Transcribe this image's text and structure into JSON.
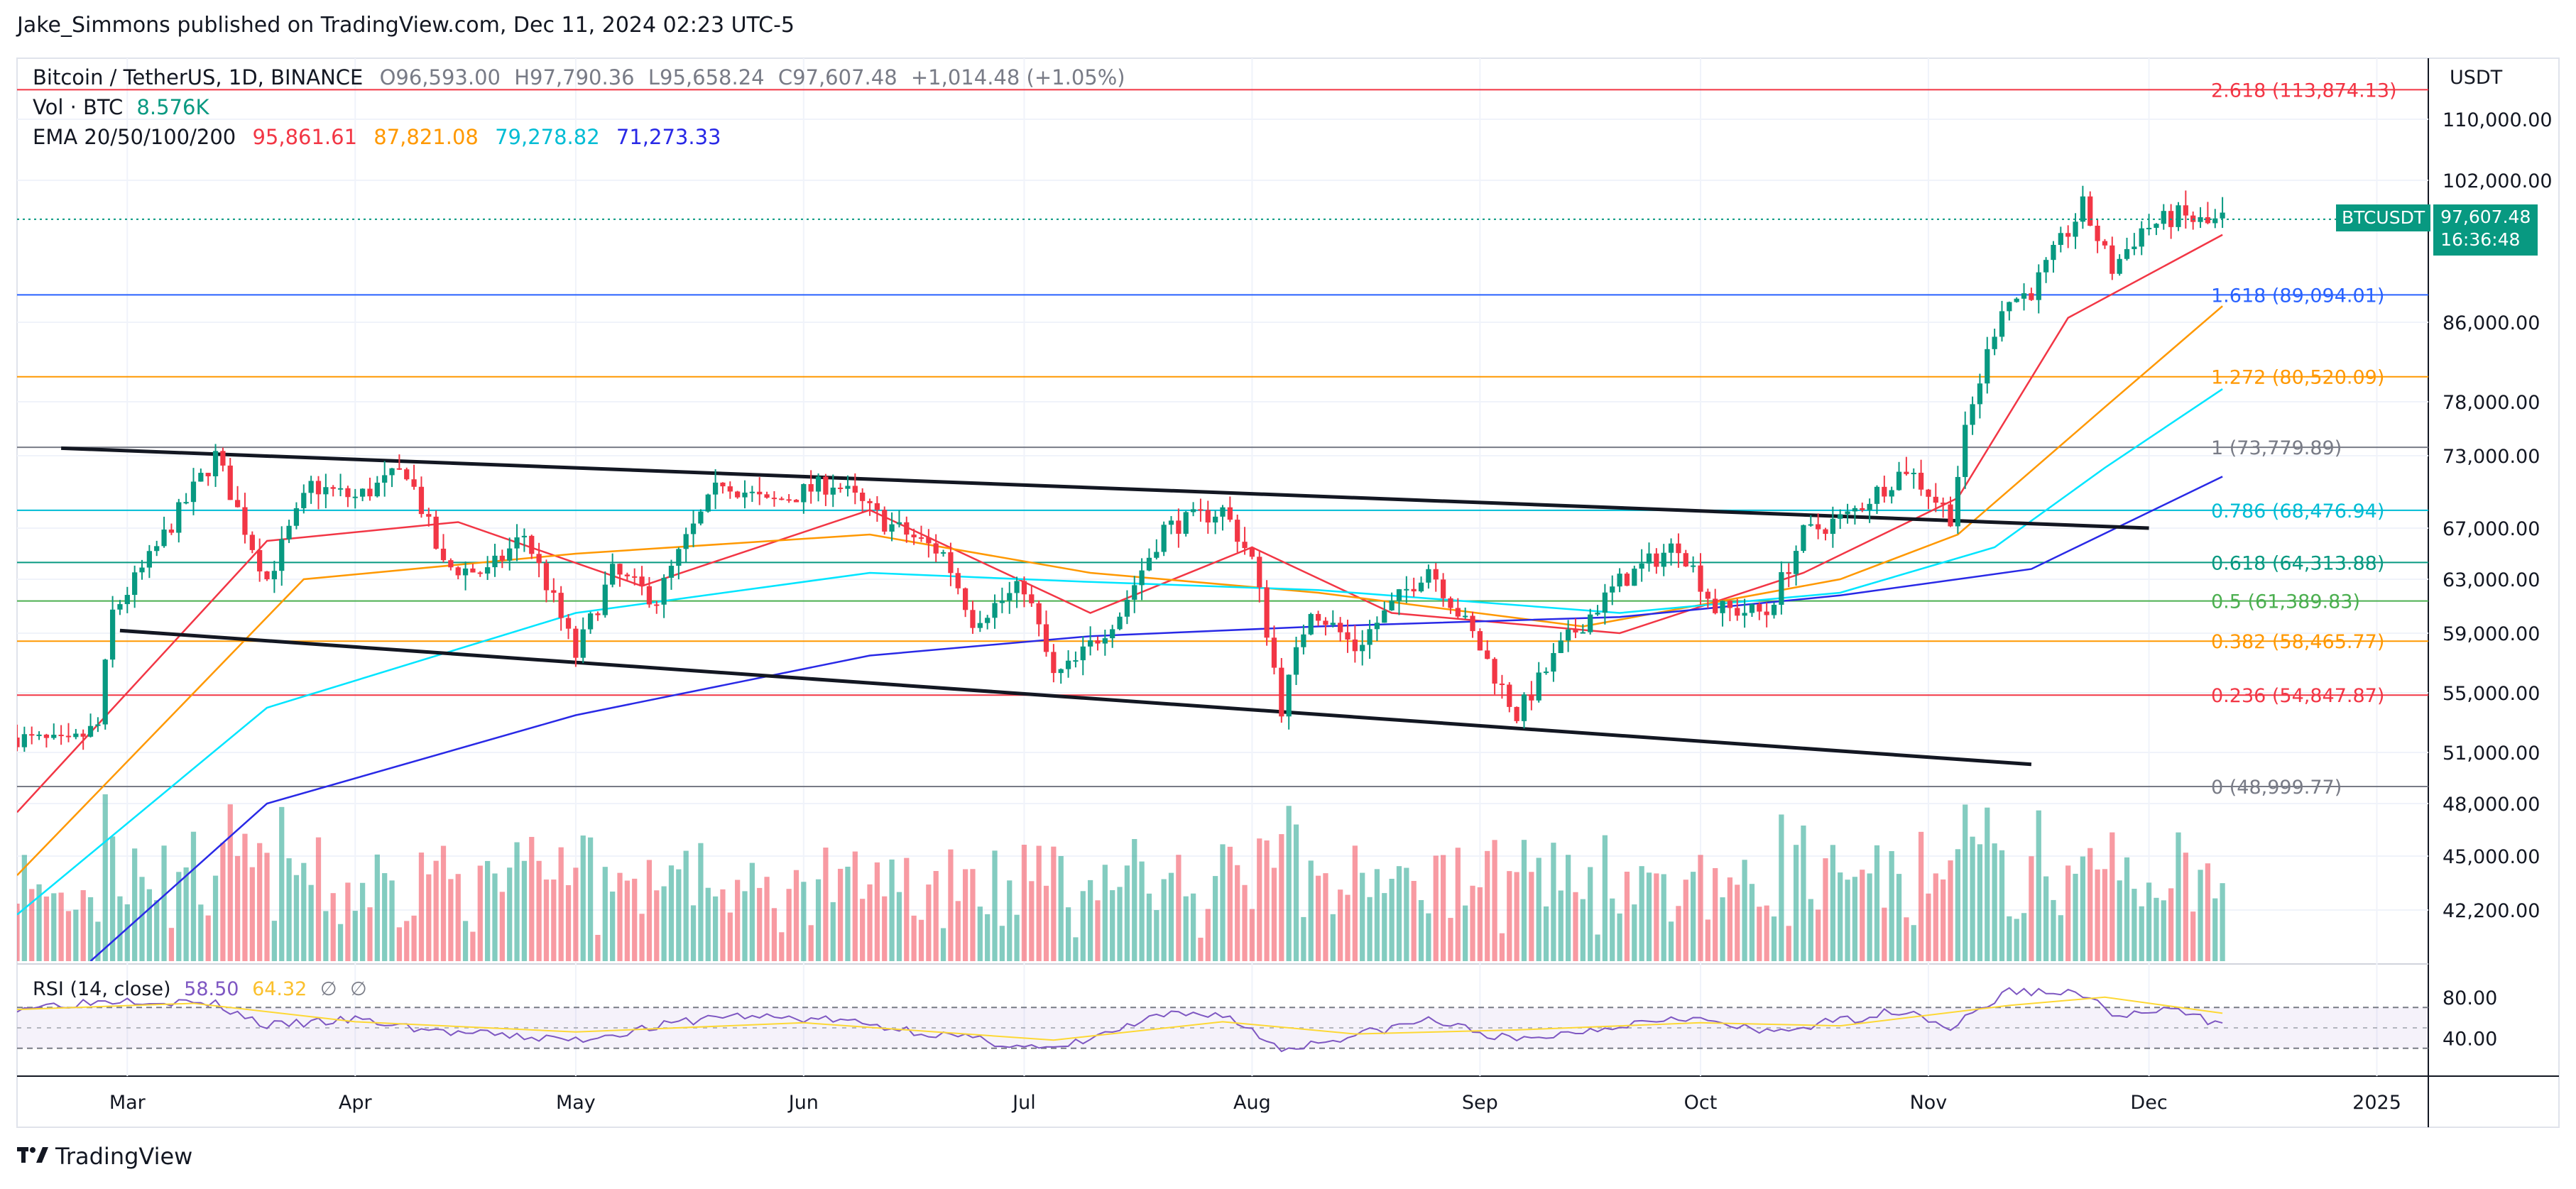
{
  "header": {
    "published": "Jake_Simmons published on TradingView.com, Dec 11, 2024 02:23 UTC-5"
  },
  "legend": {
    "symbol": "Bitcoin / TetherUS, 1D, BINANCE",
    "o_label": "O",
    "o": "96,593.00",
    "h_label": "H",
    "h": "97,790.36",
    "l_label": "L",
    "l": "95,658.24",
    "c_label": "C",
    "c": "97,607.48",
    "change": "+1,014.48 (+1.05%)",
    "vol_label": "Vol · BTC",
    "vol": "8.576K",
    "ema_label": "EMA 20/50/100/200",
    "ema20": "95,861.61",
    "ema50": "87,821.08",
    "ema100": "79,278.82",
    "ema200": "71,273.33"
  },
  "rsi_legend": {
    "label": "RSI (14, close)",
    "rsi": "58.50",
    "ma": "64.32",
    "d1": "∅",
    "d2": "∅"
  },
  "price_axis": {
    "unit": "USDT"
  },
  "current_price": {
    "ticker": "BTCUSDT",
    "price": "97,607.48",
    "countdown": "16:36:48"
  },
  "footer": {
    "brand": "TradingView"
  },
  "colors": {
    "up": "#089981",
    "down": "#f23645",
    "ema20": "#f23645",
    "ema50": "#ff9800",
    "ema100": "#00e5ff",
    "ema200": "#2929e6",
    "rsi": "#7e57c2",
    "rsi_ma": "#fdd835"
  },
  "chart_data": {
    "type": "candlestick",
    "title": "Bitcoin / TetherUS, 1D, BINANCE",
    "x_range": [
      "2024-02-15",
      "2025-01-08"
    ],
    "y_range": [
      40000,
      118000
    ],
    "x_ticks": [
      {
        "label": "Mar",
        "date": "2024-03-01"
      },
      {
        "label": "Apr",
        "date": "2024-04-01"
      },
      {
        "label": "May",
        "date": "2024-05-01"
      },
      {
        "label": "Jun",
        "date": "2024-06-01"
      },
      {
        "label": "Jul",
        "date": "2024-07-01"
      },
      {
        "label": "Aug",
        "date": "2024-08-01"
      },
      {
        "label": "Sep",
        "date": "2024-09-01"
      },
      {
        "label": "Oct",
        "date": "2024-10-01"
      },
      {
        "label": "Nov",
        "date": "2024-11-01"
      },
      {
        "label": "Dec",
        "date": "2024-12-01"
      },
      {
        "label": "2025",
        "date": "2025-01-01"
      }
    ],
    "y_ticks": [
      {
        "label": "110,000.00",
        "value": 110000
      },
      {
        "label": "102,000.00",
        "value": 102000
      },
      {
        "label": "86,000.00",
        "value": 86000
      },
      {
        "label": "78,000.00",
        "value": 78000
      },
      {
        "label": "73,000.00",
        "value": 73000
      },
      {
        "label": "67,000.00",
        "value": 67000
      },
      {
        "label": "63,000.00",
        "value": 63000
      },
      {
        "label": "59,000.00",
        "value": 59000
      },
      {
        "label": "55,000.00",
        "value": 55000
      },
      {
        "label": "51,000.00",
        "value": 51000
      },
      {
        "label": "48,000.00",
        "value": 48000
      },
      {
        "label": "45,000.00",
        "value": 45000
      },
      {
        "label": "42,200.00",
        "value": 42200
      }
    ],
    "rsi_ticks": [
      {
        "label": "80.00",
        "value": 80
      },
      {
        "label": "40.00",
        "value": 40
      }
    ],
    "fib_levels": [
      {
        "label": "2.618 (113,874.13)",
        "value": 113874.13,
        "color": "#f23645"
      },
      {
        "label": "1.618 (89,094.01)",
        "value": 89094.01,
        "color": "#2962ff"
      },
      {
        "label": "1.272 (80,520.09)",
        "value": 80520.09,
        "color": "#ff9800"
      },
      {
        "label": "1 (73,779.89)",
        "value": 73779.89,
        "color": "#787b86"
      },
      {
        "label": "0.786 (68,476.94)",
        "value": 68476.94,
        "color": "#00bcd4"
      },
      {
        "label": "0.618 (64,313.88)",
        "value": 64313.88,
        "color": "#089981"
      },
      {
        "label": "0.5 (61,389.83)",
        "value": 61389.83,
        "color": "#4caf50"
      },
      {
        "label": "0.382 (58,465.77)",
        "value": 58465.77,
        "color": "#ff9800"
      },
      {
        "label": "0.236 (54,847.87)",
        "value": 54847.87,
        "color": "#f23645"
      },
      {
        "label": "0 (48,999.77)",
        "value": 48999.77,
        "color": "#787b86"
      }
    ],
    "trendlines": [
      {
        "from": {
          "date": "2024-02-21",
          "value": 73700
        },
        "to": {
          "date": "2024-12-01",
          "value": 67000
        }
      },
      {
        "from": {
          "date": "2024-02-29",
          "value": 59200
        },
        "to": {
          "date": "2024-11-15",
          "value": 50300
        }
      }
    ],
    "price_path": [
      [
        "2024-02-15",
        52000
      ],
      [
        "2024-02-22",
        51500
      ],
      [
        "2024-02-26",
        52800
      ],
      [
        "2024-02-28",
        60500
      ],
      [
        "2024-03-04",
        64500
      ],
      [
        "2024-03-08",
        68300
      ],
      [
        "2024-03-13",
        73000
      ],
      [
        "2024-03-17",
        67000
      ],
      [
        "2024-03-20",
        63000
      ],
      [
        "2024-03-26",
        70500
      ],
      [
        "2024-04-01",
        69500
      ],
      [
        "2024-04-08",
        71800
      ],
      [
        "2024-04-13",
        64000
      ],
      [
        "2024-04-19",
        63500
      ],
      [
        "2024-04-24",
        66500
      ],
      [
        "2024-05-01",
        57500
      ],
      [
        "2024-05-06",
        63500
      ],
      [
        "2024-05-12",
        61500
      ],
      [
        "2024-05-16",
        66000
      ],
      [
        "2024-05-21",
        71000
      ],
      [
        "2024-05-27",
        69000
      ],
      [
        "2024-06-05",
        70800
      ],
      [
        "2024-06-12",
        67500
      ],
      [
        "2024-06-20",
        65000
      ],
      [
        "2024-06-24",
        60000
      ],
      [
        "2024-07-01",
        62500
      ],
      [
        "2024-07-05",
        56000
      ],
      [
        "2024-07-08",
        57000
      ],
      [
        "2024-07-14",
        60500
      ],
      [
        "2024-07-20",
        67000
      ],
      [
        "2024-07-28",
        68500
      ],
      [
        "2024-08-01",
        64500
      ],
      [
        "2024-08-05",
        54000
      ],
      [
        "2024-08-09",
        61000
      ],
      [
        "2024-08-15",
        58000
      ],
      [
        "2024-08-25",
        64000
      ],
      [
        "2024-09-01",
        58000
      ],
      [
        "2024-09-06",
        53500
      ],
      [
        "2024-09-12",
        58000
      ],
      [
        "2024-09-20",
        62800
      ],
      [
        "2024-09-28",
        65800
      ],
      [
        "2024-10-03",
        60800
      ],
      [
        "2024-10-10",
        60500
      ],
      [
        "2024-10-15",
        66500
      ],
      [
        "2024-10-21",
        68000
      ],
      [
        "2024-10-29",
        72000
      ],
      [
        "2024-11-04",
        68000
      ],
      [
        "2024-11-06",
        75000
      ],
      [
        "2024-11-11",
        88000
      ],
      [
        "2024-11-15",
        89500
      ],
      [
        "2024-11-22",
        99000
      ],
      [
        "2024-11-26",
        92000
      ],
      [
        "2024-11-30",
        96500
      ],
      [
        "2024-12-05",
        98000
      ],
      [
        "2024-12-09",
        97000
      ],
      [
        "2024-12-11",
        97607
      ]
    ],
    "emas": [
      {
        "name": "EMA 20",
        "color": "#f23645",
        "points": [
          [
            "2024-02-15",
            47500
          ],
          [
            "2024-03-20",
            66000
          ],
          [
            "2024-04-15",
            67500
          ],
          [
            "2024-05-10",
            62500
          ],
          [
            "2024-06-10",
            68500
          ],
          [
            "2024-07-10",
            60500
          ],
          [
            "2024-08-01",
            65500
          ],
          [
            "2024-08-20",
            60500
          ],
          [
            "2024-09-20",
            59000
          ],
          [
            "2024-10-15",
            63500
          ],
          [
            "2024-11-05",
            69500
          ],
          [
            "2024-11-20",
            86500
          ],
          [
            "2024-12-11",
            95862
          ]
        ]
      },
      {
        "name": "EMA 50",
        "color": "#ff9800",
        "points": [
          [
            "2024-02-15",
            44000
          ],
          [
            "2024-03-25",
            63000
          ],
          [
            "2024-05-01",
            65000
          ],
          [
            "2024-06-10",
            66500
          ],
          [
            "2024-07-10",
            63500
          ],
          [
            "2024-08-10",
            62000
          ],
          [
            "2024-09-15",
            59500
          ],
          [
            "2024-10-20",
            63000
          ],
          [
            "2024-11-05",
            66500
          ],
          [
            "2024-11-25",
            77500
          ],
          [
            "2024-12-11",
            87821
          ]
        ]
      },
      {
        "name": "EMA 100",
        "color": "#00e5ff",
        "points": [
          [
            "2024-02-15",
            42000
          ],
          [
            "2024-03-20",
            54000
          ],
          [
            "2024-05-01",
            60500
          ],
          [
            "2024-06-10",
            63500
          ],
          [
            "2024-07-10",
            62800
          ],
          [
            "2024-08-10",
            62200
          ],
          [
            "2024-09-20",
            60500
          ],
          [
            "2024-10-20",
            62000
          ],
          [
            "2024-11-10",
            65500
          ],
          [
            "2024-11-25",
            72000
          ],
          [
            "2024-12-11",
            79279
          ]
        ]
      },
      {
        "name": "EMA 200",
        "color": "#2929e6",
        "points": [
          [
            "2024-02-25",
            40000
          ],
          [
            "2024-03-20",
            48000
          ],
          [
            "2024-05-01",
            53500
          ],
          [
            "2024-06-10",
            57500
          ],
          [
            "2024-07-10",
            58800
          ],
          [
            "2024-08-10",
            59500
          ],
          [
            "2024-09-20",
            60200
          ],
          [
            "2024-10-20",
            61800
          ],
          [
            "2024-11-15",
            63800
          ],
          [
            "2024-12-11",
            71273
          ]
        ]
      }
    ],
    "rsi_path": [
      [
        "2024-02-15",
        70
      ],
      [
        "2024-03-01",
        78
      ],
      [
        "2024-03-13",
        73
      ],
      [
        "2024-03-20",
        52
      ],
      [
        "2024-04-01",
        58
      ],
      [
        "2024-04-13",
        46
      ],
      [
        "2024-05-01",
        38
      ],
      [
        "2024-05-21",
        62
      ],
      [
        "2024-06-05",
        58
      ],
      [
        "2024-06-24",
        39
      ],
      [
        "2024-07-05",
        28
      ],
      [
        "2024-07-20",
        62
      ],
      [
        "2024-07-28",
        64
      ],
      [
        "2024-08-05",
        29
      ],
      [
        "2024-08-20",
        50
      ],
      [
        "2024-08-25",
        58
      ],
      [
        "2024-09-06",
        37
      ],
      [
        "2024-09-28",
        62
      ],
      [
        "2024-10-10",
        45
      ],
      [
        "2024-10-29",
        68
      ],
      [
        "2024-11-04",
        50
      ],
      [
        "2024-11-12",
        86
      ],
      [
        "2024-11-22",
        84
      ],
      [
        "2024-11-26",
        62
      ],
      [
        "2024-12-05",
        67
      ],
      [
        "2024-12-09",
        57
      ],
      [
        "2024-12-11",
        58.5
      ]
    ],
    "rsi_ma_path": [
      [
        "2024-02-15",
        68
      ],
      [
        "2024-03-10",
        74
      ],
      [
        "2024-04-01",
        56
      ],
      [
        "2024-05-01",
        46
      ],
      [
        "2024-06-01",
        55
      ],
      [
        "2024-07-05",
        38
      ],
      [
        "2024-07-28",
        56
      ],
      [
        "2024-08-15",
        44
      ],
      [
        "2024-09-06",
        48
      ],
      [
        "2024-10-01",
        55
      ],
      [
        "2024-10-20",
        52
      ],
      [
        "2024-11-12",
        72
      ],
      [
        "2024-11-25",
        80
      ],
      [
        "2024-12-11",
        64.3
      ]
    ]
  }
}
